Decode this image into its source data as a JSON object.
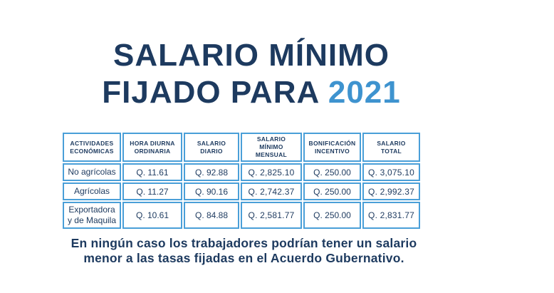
{
  "page": {
    "background_color": "#ffffff",
    "dark_navy": "#1d3a5f",
    "accent_blue": "#3e93cf",
    "table_border_blue": "#4a9fd8"
  },
  "title": {
    "line1": "SALARIO MÍNIMO",
    "line2_prefix": "FIJADO PARA ",
    "year": "2021"
  },
  "table": {
    "headers": [
      {
        "line1": "ACTIVIDADES",
        "line2": "ECONÓMICAS"
      },
      {
        "line1": "HORA DIURNA",
        "line2": "ORDINARIA"
      },
      {
        "line1": "SALARIO",
        "line2": "DIARIO"
      },
      {
        "line1": "SALARIO MÍNIMO",
        "line2": "MENSUAL"
      },
      {
        "line1": "BONIFICACIÓN",
        "line2": "INCENTIVO"
      },
      {
        "line1": "SALARIO",
        "line2": "TOTAL"
      }
    ],
    "rows": [
      {
        "activity": "No agrícolas",
        "hora_diurna_ordinaria": "Q. 11.61",
        "salario_diario": "Q. 92.88",
        "salario_minimo_mensual": "Q. 2,825.10",
        "bonificacion_incentivo": "Q. 250.00",
        "salario_total": "Q. 3,075.10"
      },
      {
        "activity": "Agrícolas",
        "hora_diurna_ordinaria": "Q. 11.27",
        "salario_diario": "Q. 90.16",
        "salario_minimo_mensual": "Q. 2,742.37",
        "bonificacion_incentivo": "Q. 250.00",
        "salario_total": "Q. 2,992.37"
      },
      {
        "activity": "Exportadora y de Maquila",
        "hora_diurna_ordinaria": "Q. 10.61",
        "salario_diario": "Q. 84.88",
        "salario_minimo_mensual": "Q. 2,581.77",
        "bonificacion_incentivo": "Q. 250.00",
        "salario_total": "Q. 2,831.77"
      }
    ]
  },
  "footer": {
    "line1": "En ningún caso los trabajadores podrían tener un salario",
    "line2": "menor a las tasas fijadas en el Acuerdo Gubernativo."
  }
}
